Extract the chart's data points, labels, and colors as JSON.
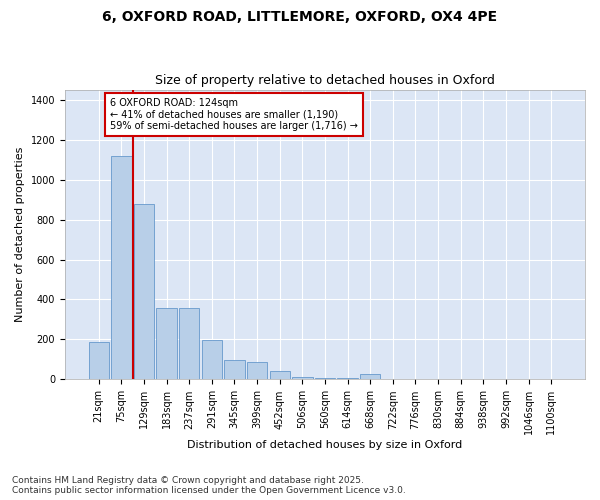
{
  "title1": "6, OXFORD ROAD, LITTLEMORE, OXFORD, OX4 4PE",
  "title2": "Size of property relative to detached houses in Oxford",
  "xlabel": "Distribution of detached houses by size in Oxford",
  "ylabel": "Number of detached properties",
  "bar_color": "#b8cfe8",
  "bar_edge_color": "#6699cc",
  "background_color": "#dce6f5",
  "grid_color": "#ffffff",
  "categories": [
    "21sqm",
    "75sqm",
    "129sqm",
    "183sqm",
    "237sqm",
    "291sqm",
    "345sqm",
    "399sqm",
    "452sqm",
    "506sqm",
    "560sqm",
    "614sqm",
    "668sqm",
    "722sqm",
    "776sqm",
    "830sqm",
    "884sqm",
    "938sqm",
    "992sqm",
    "1046sqm",
    "1100sqm"
  ],
  "values": [
    185,
    1120,
    880,
    355,
    355,
    195,
    95,
    85,
    40,
    12,
    8,
    8,
    25,
    0,
    0,
    0,
    0,
    0,
    0,
    0,
    0
  ],
  "vline_x_index": 1.5,
  "annotation_text": "6 OXFORD ROAD: 124sqm\n← 41% of detached houses are smaller (1,190)\n59% of semi-detached houses are larger (1,716) →",
  "vline_color": "#cc0000",
  "annotation_box_color": "#ffffff",
  "annotation_box_edge": "#cc0000",
  "footer1": "Contains HM Land Registry data © Crown copyright and database right 2025.",
  "footer2": "Contains public sector information licensed under the Open Government Licence v3.0.",
  "ylim": [
    0,
    1450
  ],
  "title_fontsize": 10,
  "subtitle_fontsize": 9,
  "axis_label_fontsize": 8,
  "tick_fontsize": 7,
  "annotation_fontsize": 7,
  "footer_fontsize": 6.5
}
